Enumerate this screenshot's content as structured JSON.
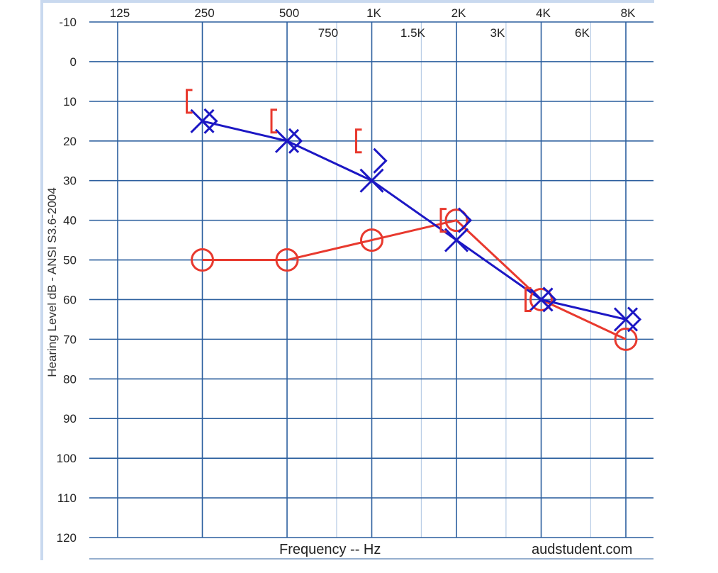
{
  "chart_data": {
    "type": "scatter",
    "title": "",
    "xlabel": "Frequency -- Hz",
    "ylabel": "Hearing Level dB - ANSI S3.6-2004",
    "credit": "audstudent.com",
    "x_scale": "log2",
    "xlim": [
      125,
      8000
    ],
    "ylim": [
      -10,
      120
    ],
    "y_inverted": true,
    "y_ticks": [
      -10,
      0,
      10,
      20,
      30,
      40,
      50,
      60,
      70,
      80,
      90,
      100,
      110,
      120
    ],
    "x_ticks_major": [
      {
        "value": 125,
        "label": "125"
      },
      {
        "value": 250,
        "label": "250"
      },
      {
        "value": 500,
        "label": "500"
      },
      {
        "value": 1000,
        "label": "1K"
      },
      {
        "value": 2000,
        "label": "2K"
      },
      {
        "value": 4000,
        "label": "4K"
      },
      {
        "value": 8000,
        "label": "8K"
      }
    ],
    "x_ticks_minor": [
      {
        "value": 750,
        "label": "750"
      },
      {
        "value": 1500,
        "label": "1.5K"
      },
      {
        "value": 3000,
        "label": "3K"
      },
      {
        "value": 6000,
        "label": "6K"
      }
    ],
    "grid": true,
    "series": [
      {
        "marker": "O",
        "color": "#e8392e",
        "connected": true,
        "points": [
          [
            250,
            50
          ],
          [
            500,
            50
          ],
          [
            1000,
            45
          ],
          [
            2000,
            40
          ],
          [
            4000,
            60
          ],
          [
            8000,
            70
          ]
        ]
      },
      {
        "marker": "X",
        "color": "#1c17c4",
        "connected": true,
        "points": [
          [
            250,
            15
          ],
          [
            500,
            20
          ],
          [
            1000,
            30
          ],
          [
            2000,
            45
          ],
          [
            4000,
            60
          ],
          [
            8000,
            65
          ]
        ]
      },
      {
        "marker": "[",
        "color": "#e8392e",
        "connected": false,
        "points": [
          [
            250,
            10
          ],
          [
            500,
            15
          ],
          [
            1000,
            20
          ],
          [
            2000,
            40
          ],
          [
            4000,
            60
          ]
        ]
      },
      {
        "marker": ">",
        "color": "#1c17c4",
        "connected": false,
        "points": [
          [
            250,
            15
          ],
          [
            500,
            20
          ],
          [
            1000,
            25
          ],
          [
            2000,
            40
          ],
          [
            4000,
            60
          ],
          [
            8000,
            65
          ]
        ]
      }
    ]
  }
}
